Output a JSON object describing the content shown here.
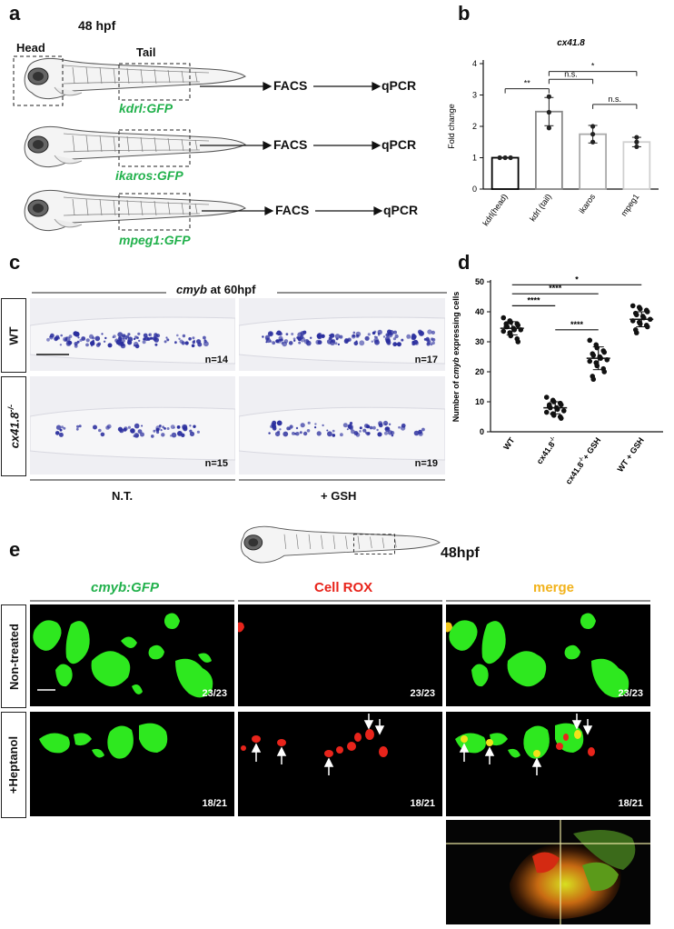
{
  "panel_a": {
    "label": "a",
    "time": "48 hpf",
    "head_label": "Head",
    "tail_label": "Tail",
    "rows": [
      {
        "reporter": "kdrl:GFP",
        "step1": "FACS",
        "step2": "qPCR"
      },
      {
        "reporter": "ikaros:GFP",
        "step1": "FACS",
        "step2": "qPCR"
      },
      {
        "reporter": "mpeg1:GFP",
        "step1": "FACS",
        "step2": "qPCR"
      }
    ]
  },
  "panel_b": {
    "label": "b",
    "chart_data": {
      "type": "bar",
      "title": "cx41.8",
      "ylabel": "Fold change",
      "categories": [
        "kdrl(head)",
        "kdrl (tail)",
        "ikaros",
        "mpeg1"
      ],
      "values": [
        1.0,
        2.47,
        1.75,
        1.5
      ],
      "errors": [
        0.0,
        0.45,
        0.28,
        0.15
      ],
      "points": [
        [
          1.0,
          1.0,
          1.0
        ],
        [
          2.95,
          2.45,
          1.95
        ],
        [
          2.0,
          1.75,
          1.5
        ],
        [
          1.65,
          1.5,
          1.35
        ]
      ],
      "bar_colors": [
        "#000000",
        "#888888",
        "#aaaaaa",
        "#d0d0d0"
      ],
      "ylim": [
        0,
        4
      ],
      "yticks": [
        "0",
        "1",
        "2",
        "3",
        "4"
      ],
      "significance": [
        {
          "from": 0,
          "to": 1,
          "label": "**"
        },
        {
          "from": 1,
          "to": 2,
          "label": "n.s."
        },
        {
          "from": 1,
          "to": 3,
          "label": "*"
        },
        {
          "from": 2,
          "to": 3,
          "label": "n.s."
        }
      ]
    }
  },
  "panel_c": {
    "label": "c",
    "title_gene": "cmyb",
    "title_rest": " at 60hpf",
    "rows": [
      "WT",
      "cx41.8"
    ],
    "row2_sup": "-/-",
    "columns": [
      "N.T.",
      "+ GSH"
    ],
    "counts": [
      "n=14",
      "n=17",
      "n=15",
      "n=19"
    ]
  },
  "panel_d": {
    "label": "d",
    "chart_data": {
      "type": "scatter",
      "ylabel_pre": "Number of ",
      "ylabel_gene": "cmyb",
      "ylabel_post": " expressing cells",
      "categories": [
        "WT",
        "cx41.8",
        "cx41.8",
        "WT + GSH"
      ],
      "category_sup": [
        "",
        "-/-",
        "-/-",
        ""
      ],
      "category_suffix": [
        "",
        "",
        "+ GSH",
        ""
      ],
      "means": [
        34.5,
        8.0,
        24.5,
        37.5
      ],
      "sd": [
        2.2,
        2.0,
        3.8,
        2.5
      ],
      "points": [
        [
          38,
          37,
          36.5,
          36,
          35.5,
          35,
          35,
          34.5,
          34,
          34,
          33.5,
          33,
          32,
          31,
          30,
          36
        ],
        [
          11.5,
          10.5,
          10,
          9.5,
          9,
          8.5,
          8,
          8,
          7.5,
          7,
          6.5,
          6,
          5.5,
          5,
          4.5,
          9
        ],
        [
          30.5,
          29,
          28,
          27,
          26.5,
          26,
          25.5,
          25,
          24.5,
          24,
          23.5,
          23,
          22,
          21,
          20,
          18.5,
          17.5
        ],
        [
          42,
          41.5,
          41,
          40.5,
          40,
          39.5,
          39,
          38.5,
          38,
          37.5,
          37,
          36.5,
          36,
          35.5,
          35,
          34,
          33
        ]
      ],
      "ylim": [
        0,
        50
      ],
      "yticks": [
        "0",
        "10",
        "20",
        "30",
        "40",
        "50"
      ],
      "significance": [
        {
          "from": 0,
          "to": 1,
          "label": "****"
        },
        {
          "from": 0,
          "to": 2,
          "label": "****"
        },
        {
          "from": 1,
          "to": 2,
          "label": "****"
        },
        {
          "from": 0,
          "to": 3,
          "label": "*"
        }
      ]
    }
  },
  "panel_e": {
    "label": "e",
    "time": "48hpf",
    "columns": [
      {
        "title": "cmyb:GFP",
        "color": "#22b14c"
      },
      {
        "title": "Cell ROX",
        "color": "#e8241b"
      },
      {
        "title": "merge",
        "color": "#f2b21a"
      }
    ],
    "rows": [
      "Non-treated",
      "+Heptanol"
    ],
    "counts_row1": [
      "23/23",
      "23/23",
      "23/23"
    ],
    "counts_row2": [
      "18/21",
      "18/21",
      "18/21"
    ]
  }
}
